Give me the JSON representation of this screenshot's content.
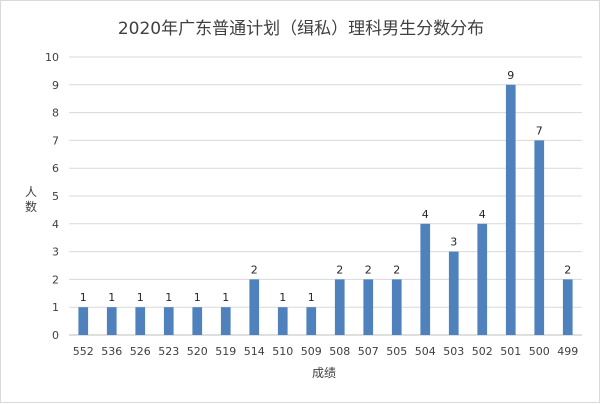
{
  "chart_data": {
    "type": "bar",
    "title": "2020年广东普通计划（缉私）理科男生分数分布",
    "xlabel": "成绩",
    "ylabel": "人数",
    "ylim": [
      0,
      10
    ],
    "yticks": [
      0,
      1,
      2,
      3,
      4,
      5,
      6,
      7,
      8,
      9,
      10
    ],
    "grid": true,
    "legend": "none",
    "bar_color": "#4f81bd",
    "categories": [
      "552",
      "536",
      "526",
      "523",
      "520",
      "519",
      "514",
      "510",
      "509",
      "508",
      "507",
      "505",
      "504",
      "503",
      "502",
      "501",
      "500",
      "499"
    ],
    "values": [
      1,
      1,
      1,
      1,
      1,
      1,
      2,
      1,
      1,
      2,
      2,
      2,
      4,
      3,
      4,
      9,
      7,
      2
    ]
  }
}
